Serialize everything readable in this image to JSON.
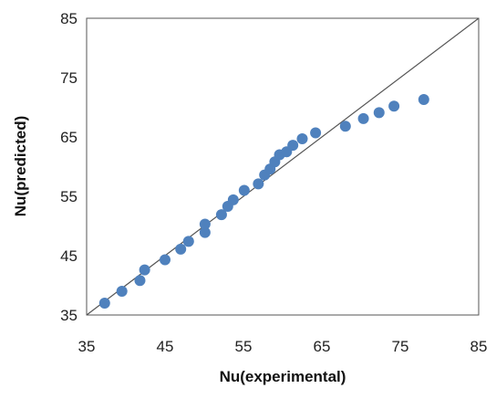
{
  "chart_data": {
    "type": "scatter",
    "title": "",
    "xlabel": "Nu(experimental)",
    "ylabel": "Nu(predicted)",
    "xlim": [
      35,
      85
    ],
    "ylim": [
      35,
      85
    ],
    "xticks": [
      35,
      45,
      55,
      65,
      75,
      85
    ],
    "yticks": [
      35,
      45,
      55,
      65,
      75,
      85
    ],
    "grid": false,
    "legend": "none",
    "reference_line": {
      "from": [
        35,
        35
      ],
      "to": [
        85,
        85
      ],
      "color": "#555555"
    },
    "series": [
      {
        "color": "#4f81bd",
        "points": [
          [
            37.3,
            37.0
          ],
          [
            39.5,
            39.0
          ],
          [
            41.8,
            40.8
          ],
          [
            42.4,
            42.6
          ],
          [
            45.0,
            44.3
          ],
          [
            47.0,
            46.1
          ],
          [
            48.0,
            47.4
          ],
          [
            50.1,
            48.9
          ],
          [
            50.1,
            50.3
          ],
          [
            52.2,
            51.9
          ],
          [
            53.0,
            53.3
          ],
          [
            53.7,
            54.4
          ],
          [
            55.1,
            56.0
          ],
          [
            56.9,
            57.1
          ],
          [
            57.7,
            58.6
          ],
          [
            58.4,
            59.6
          ],
          [
            59.0,
            60.8
          ],
          [
            59.6,
            62.0
          ],
          [
            60.5,
            62.5
          ],
          [
            61.3,
            63.6
          ],
          [
            62.5,
            64.7
          ],
          [
            64.2,
            65.7
          ],
          [
            68.0,
            66.8
          ],
          [
            70.3,
            68.1
          ],
          [
            72.3,
            69.1
          ],
          [
            74.2,
            70.2
          ],
          [
            78.0,
            71.3
          ]
        ]
      }
    ]
  }
}
